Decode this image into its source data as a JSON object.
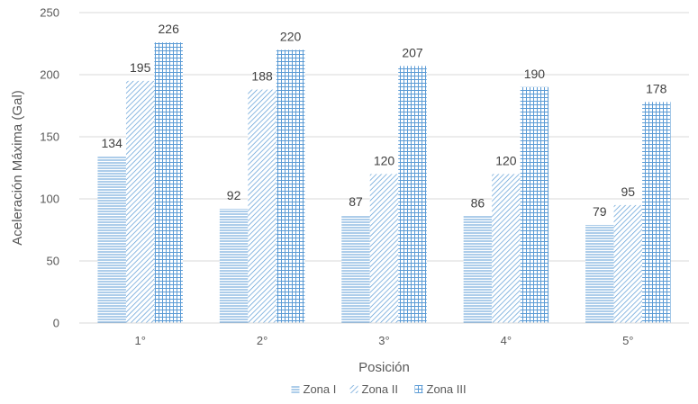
{
  "chart_data": {
    "type": "bar",
    "title": "",
    "xlabel": "Posición",
    "ylabel": "Aceleración Máxima (Gal)",
    "ylim": [
      0,
      250
    ],
    "yticks": [
      0,
      50,
      100,
      150,
      200,
      250
    ],
    "grid": "horizontal",
    "legend": "bottom",
    "categories": [
      "1°",
      "2°",
      "3°",
      "4°",
      "5°"
    ],
    "series": [
      {
        "name": "Zona I",
        "values": [
          134,
          92,
          87,
          86,
          79
        ],
        "labels": [
          "134",
          "92",
          "87",
          "86",
          "79"
        ],
        "pattern": "horizontal-lines",
        "color": "#5b9bd5"
      },
      {
        "name": "Zona II",
        "values": [
          195,
          188,
          120,
          120,
          95
        ],
        "labels": [
          "195",
          "188",
          "120",
          "120",
          "95"
        ],
        "pattern": "diagonal-lines",
        "color": "#5b9bd5"
      },
      {
        "name": "Zona III",
        "values": [
          226,
          220,
          207,
          190,
          178
        ],
        "labels": [
          "226",
          "220",
          "207",
          "190",
          "178"
        ],
        "pattern": "grid",
        "color": "#5b9bd5"
      }
    ]
  }
}
